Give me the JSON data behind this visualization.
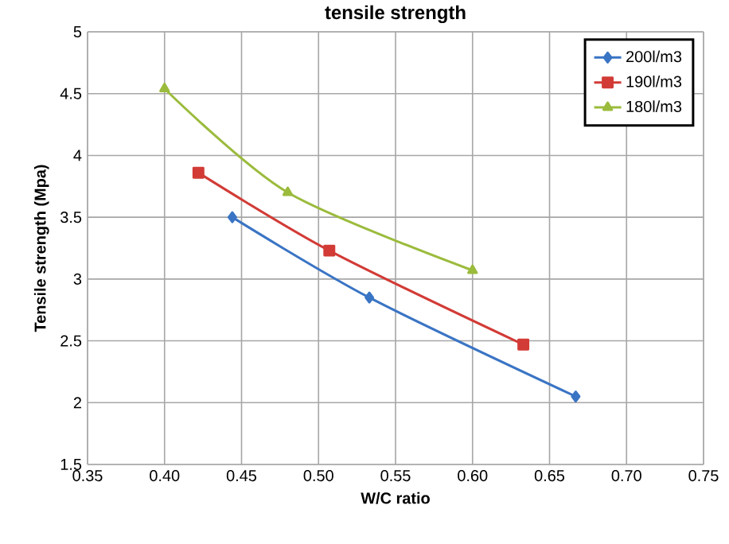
{
  "chart_data": {
    "type": "line",
    "title": "tensile strength",
    "xlabel": "W/C ratio",
    "ylabel": "Tensile strength  (Mpa)",
    "xlim": [
      0.35,
      0.75
    ],
    "xticks": [
      {
        "value": 0.35,
        "label": "0.35"
      },
      {
        "value": 0.4,
        "label": "0.40"
      },
      {
        "value": 0.45,
        "label": "0.45"
      },
      {
        "value": 0.5,
        "label": "0.50"
      },
      {
        "value": 0.55,
        "label": "0.55"
      },
      {
        "value": 0.6,
        "label": "0.60"
      },
      {
        "value": 0.65,
        "label": "0.65"
      },
      {
        "value": 0.7,
        "label": "0.70"
      },
      {
        "value": 0.75,
        "label": "0.75"
      }
    ],
    "ylim": [
      1.5,
      5
    ],
    "yticks": [
      1.5,
      2,
      2.5,
      3,
      3.5,
      4,
      4.5,
      5
    ],
    "grid": true,
    "legend": "top right",
    "line_style": "solid",
    "series": [
      {
        "name": "200l/m3",
        "color": "#3a74c4",
        "marker": "diamond",
        "x": [
          0.444,
          0.533,
          0.667
        ],
        "values": [
          3.5,
          2.85,
          2.05
        ]
      },
      {
        "name": "190l/m3",
        "color": "#d23b36",
        "marker": "square",
        "x": [
          0.422,
          0.507,
          0.633
        ],
        "values": [
          3.86,
          3.23,
          2.47
        ]
      },
      {
        "name": "180l/m3",
        "color": "#9bbb3c",
        "marker": "triangle",
        "x": [
          0.4,
          0.48,
          0.6
        ],
        "values": [
          4.54,
          3.7,
          3.07
        ]
      }
    ]
  }
}
